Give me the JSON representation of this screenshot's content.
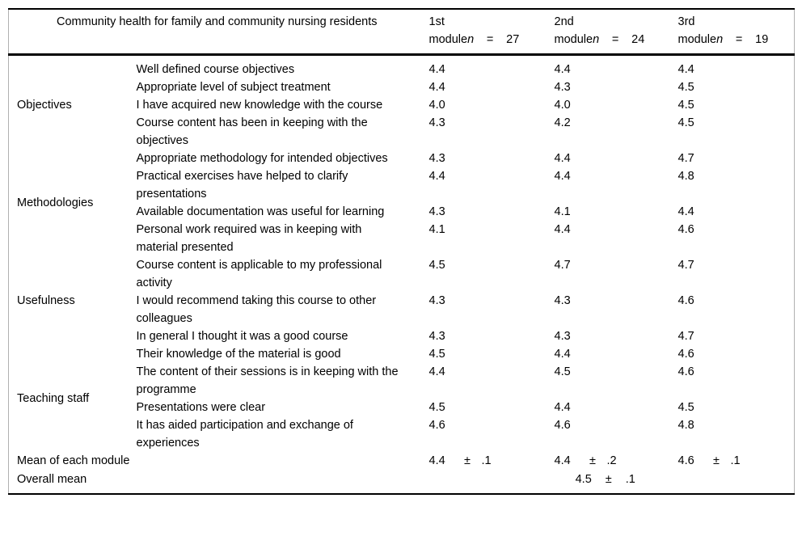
{
  "table": {
    "title": "Community health for family and community nursing residents",
    "columns": [
      {
        "ordinal": "1st",
        "module_word": "module",
        "n_label": "n",
        "eq": "=",
        "count": "27"
      },
      {
        "ordinal": "2nd",
        "module_word": "module",
        "n_label": "n",
        "eq": "=",
        "count": "24"
      },
      {
        "ordinal": "3rd",
        "module_word": "module",
        "n_label": "n",
        "eq": "=",
        "count": "19"
      }
    ],
    "groups": [
      {
        "label": "Objectives",
        "rows": [
          {
            "item": "Well defined course objectives",
            "values": [
              "4.4",
              "4.4",
              "4.4"
            ]
          },
          {
            "item": "Appropriate level of subject treatment",
            "values": [
              "4.4",
              "4.3",
              "4.5"
            ]
          },
          {
            "item": "I have acquired new knowledge with the course",
            "values": [
              "4.0",
              "4.0",
              "4.5"
            ]
          },
          {
            "item": "Course content has been in keeping with the objectives",
            "values": [
              "4.3",
              "4.2",
              "4.5"
            ]
          }
        ]
      },
      {
        "label": "Methodologies",
        "rows": [
          {
            "item": "Appropriate methodology for intended objectives",
            "values": [
              "4.3",
              "4.4",
              "4.7"
            ]
          },
          {
            "item": "Practical exercises have helped to clarify presentations",
            "values": [
              "4.4",
              "4.4",
              "4.8"
            ]
          },
          {
            "item": "Available documentation was useful for learning",
            "values": [
              "4.3",
              "4.1",
              "4.4"
            ]
          },
          {
            "item": "Personal work required was in keeping with material presented",
            "values": [
              "4.1",
              "4.4",
              "4.6"
            ]
          }
        ]
      },
      {
        "label": "Usefulness",
        "rows": [
          {
            "item": "Course content is applicable to my professional activity",
            "values": [
              "4.5",
              "4.7",
              "4.7"
            ]
          },
          {
            "item": "I would recommend taking this course to other colleagues",
            "values": [
              "4.3",
              "4.3",
              "4.6"
            ]
          },
          {
            "item": "In general I thought it was a good course",
            "values": [
              "4.3",
              "4.3",
              "4.7"
            ]
          }
        ]
      },
      {
        "label": "Teaching staff",
        "rows": [
          {
            "item": "Their knowledge of the material is good",
            "values": [
              "4.5",
              "4.4",
              "4.6"
            ]
          },
          {
            "item": "The content of their sessions is in keeping with the programme",
            "values": [
              "4.4",
              "4.5",
              "4.6"
            ]
          },
          {
            "item": "Presentations were clear",
            "values": [
              "4.5",
              "4.4",
              "4.5"
            ]
          },
          {
            "item": "It has aided participation and exchange of experiences",
            "values": [
              "4.6",
              "4.6",
              "4.8"
            ]
          }
        ]
      }
    ],
    "summary": {
      "mean_label": "Mean of each module",
      "means": [
        {
          "value": "4.4",
          "pm": "±",
          "err": ".1"
        },
        {
          "value": "4.4",
          "pm": "±",
          "err": ".2"
        },
        {
          "value": "4.6",
          "pm": "±",
          "err": ".1"
        }
      ],
      "overall_label": "Overall mean",
      "overall": {
        "value": "4.5",
        "pm": "±",
        "err": ".1"
      }
    }
  }
}
